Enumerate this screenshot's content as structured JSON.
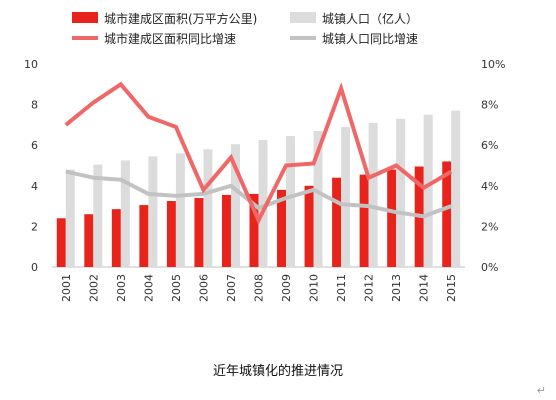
{
  "chart_data": {
    "type": "bar",
    "categories": [
      "2001",
      "2002",
      "2003",
      "2004",
      "2005",
      "2006",
      "2007",
      "2008",
      "2009",
      "2010",
      "2011",
      "2012",
      "2013",
      "2014",
      "2015"
    ],
    "series": [
      {
        "name": "城市建成区面积(万平方公里)",
        "kind": "bar",
        "axis": "left",
        "color": "#e8231c",
        "values": [
          2.4,
          2.6,
          2.85,
          3.05,
          3.25,
          3.4,
          3.55,
          3.6,
          3.8,
          4.0,
          4.4,
          4.55,
          4.8,
          4.95,
          5.2
        ]
      },
      {
        "name": "城镇人口（亿人）",
        "kind": "bar",
        "axis": "left",
        "color": "#dcdcdc",
        "values": [
          4.8,
          5.05,
          5.25,
          5.45,
          5.6,
          5.8,
          6.05,
          6.25,
          6.45,
          6.7,
          6.9,
          7.1,
          7.3,
          7.5,
          7.7
        ]
      },
      {
        "name": "城市建成区面积同比增速",
        "kind": "line",
        "axis": "right",
        "color": "#f06767",
        "values": [
          7.0,
          8.1,
          9.0,
          7.4,
          6.9,
          3.8,
          5.4,
          2.3,
          5.0,
          5.1,
          8.8,
          4.4,
          5.0,
          3.9,
          4.7
        ]
      },
      {
        "name": "城镇人口同比增速",
        "kind": "line",
        "axis": "right",
        "color": "#c2c2c2",
        "values": [
          4.7,
          4.4,
          4.3,
          3.6,
          3.5,
          3.6,
          4.0,
          2.9,
          3.4,
          3.8,
          3.1,
          3.0,
          2.7,
          2.5,
          3.0
        ]
      }
    ],
    "left_axis": {
      "ylim": [
        0,
        10
      ],
      "ticks": [
        "0",
        "2",
        "4",
        "6",
        "8",
        "10"
      ]
    },
    "right_axis": {
      "ylim": [
        0,
        10
      ],
      "ticks": [
        "0%",
        "2%",
        "4%",
        "6%",
        "8%",
        "10%"
      ]
    },
    "legend": "top",
    "grid": false
  },
  "caption": "近年城镇化的推进情况",
  "return_mark": "↵"
}
